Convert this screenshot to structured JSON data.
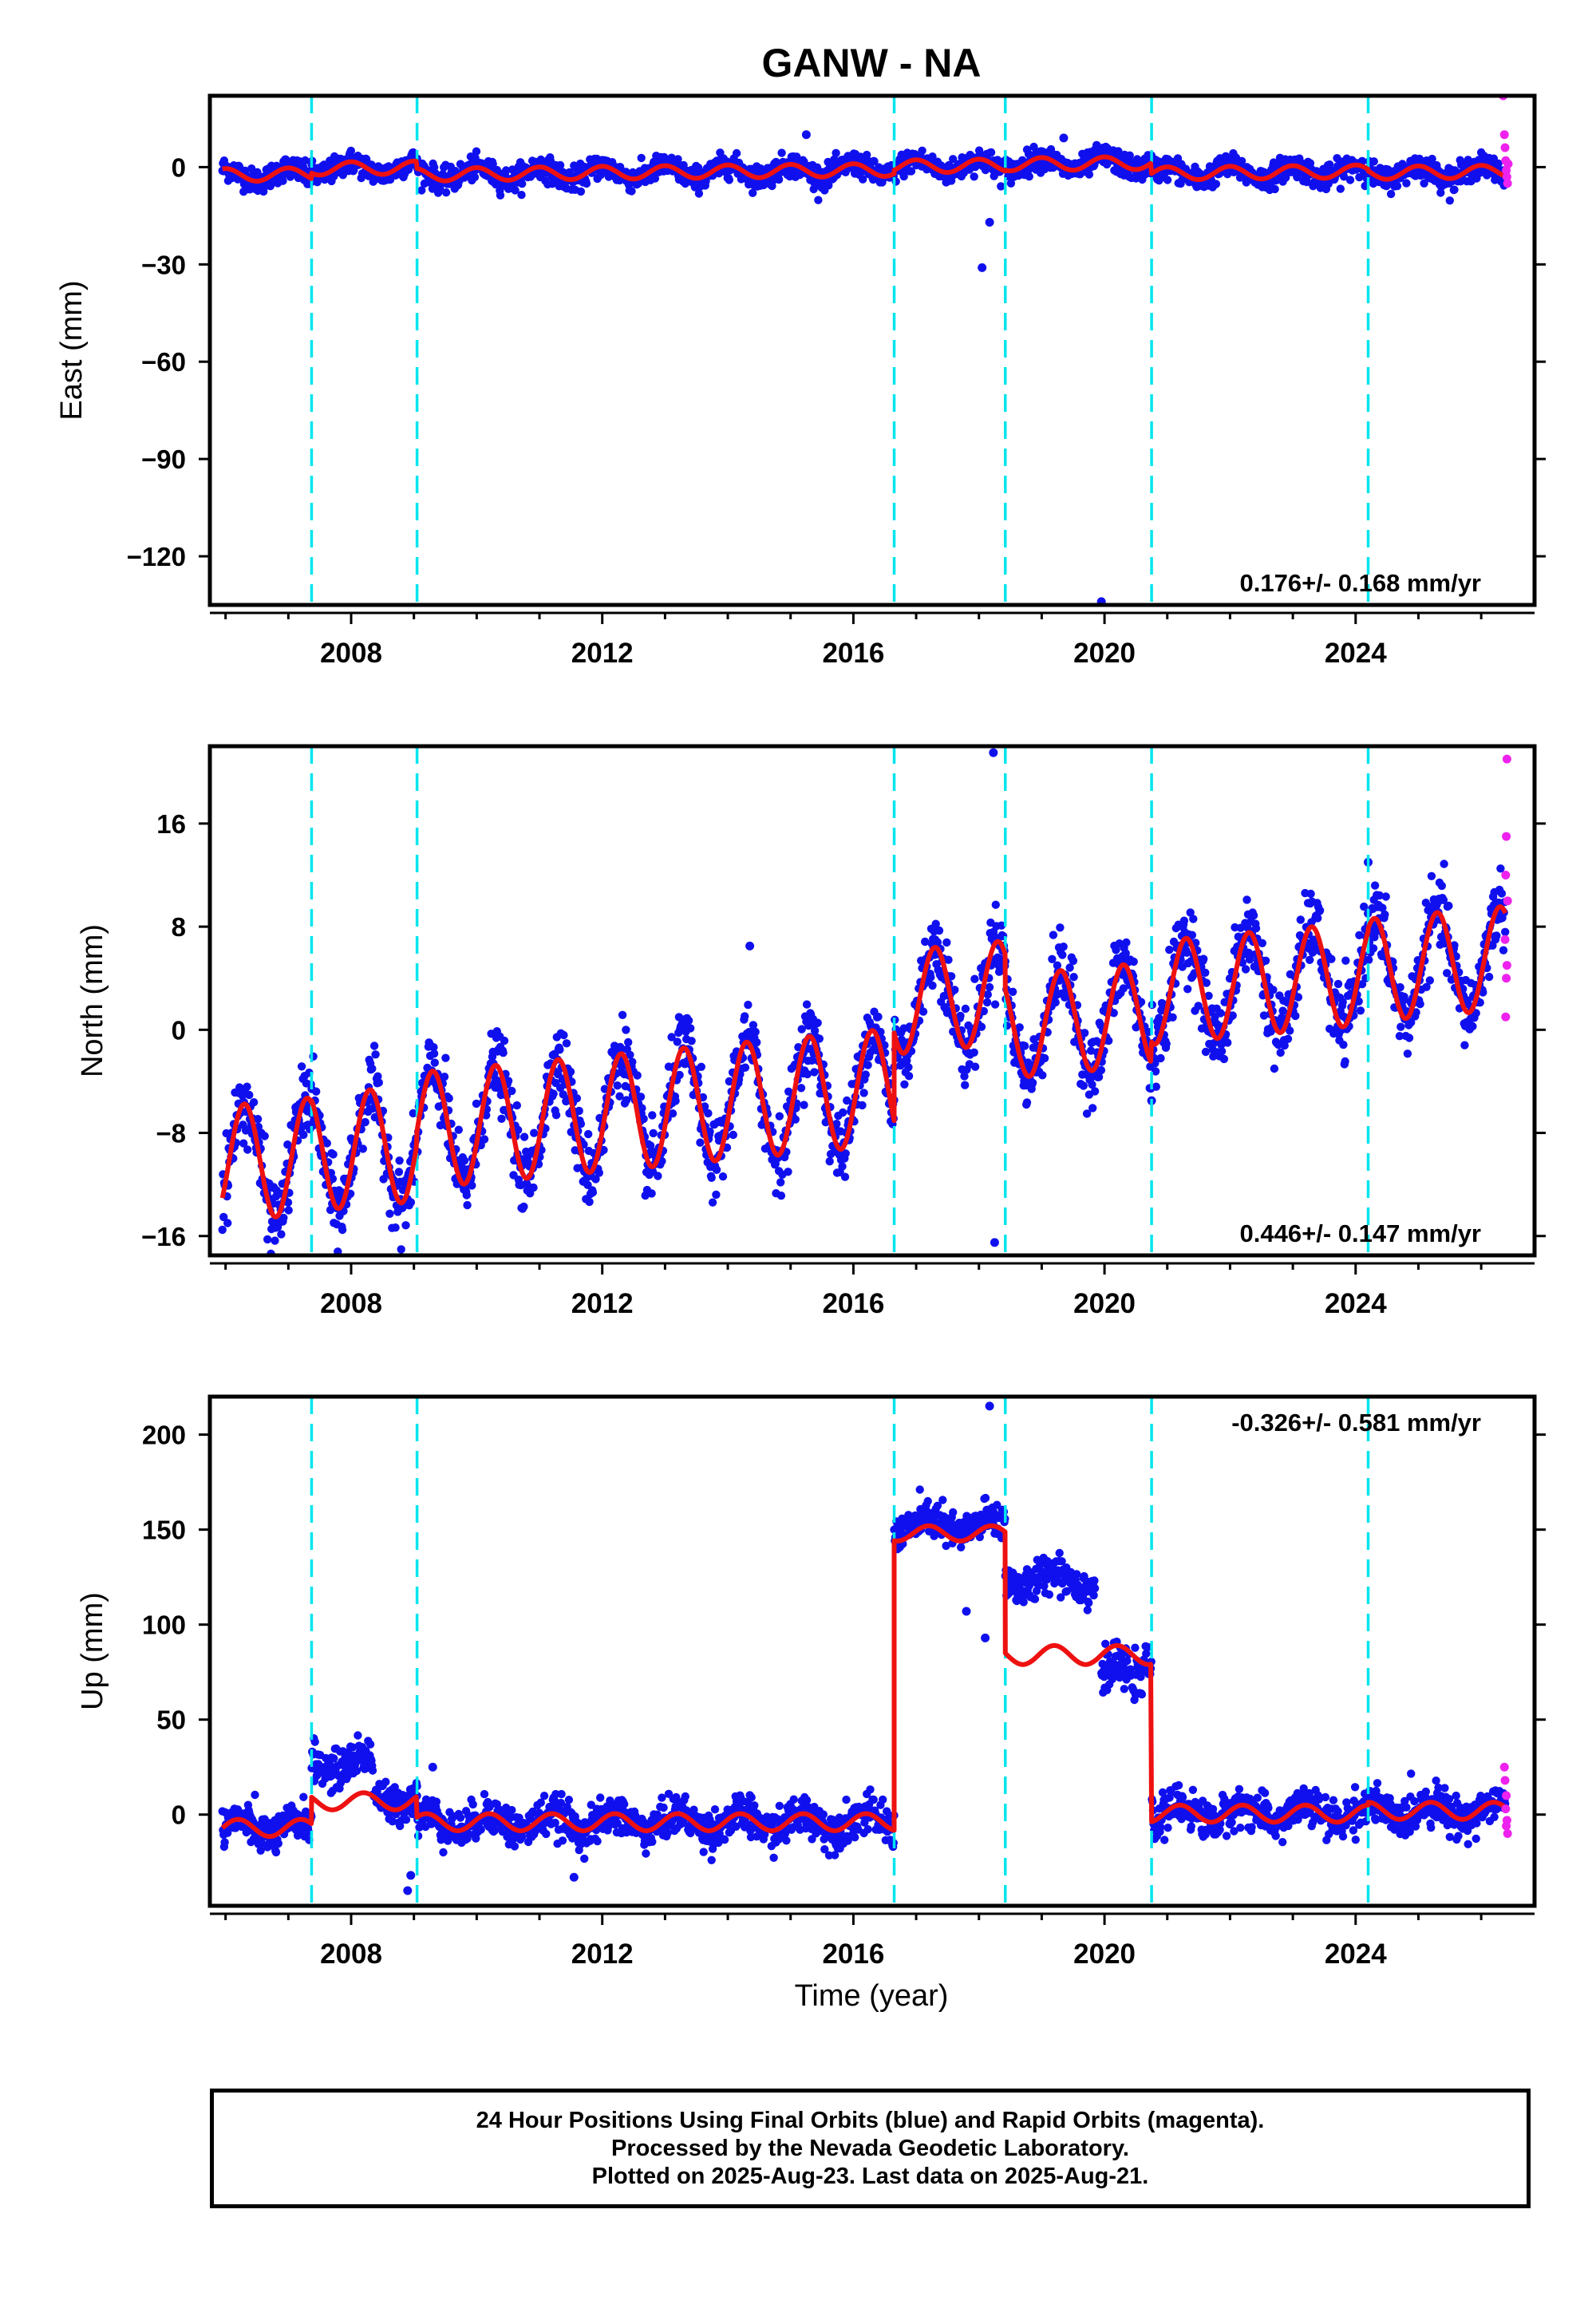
{
  "title": "GANW - NA",
  "colors": {
    "final_orbits": "#1010ee",
    "rapid_orbits": "#ee22ee",
    "model": "#ee1111",
    "steps": "#00e5ee",
    "frame": "#000000"
  },
  "xlabel": "Time (year)",
  "x_ticks": [
    "2008",
    "2012",
    "2016",
    "2020",
    "2024"
  ],
  "chart_data": [
    {
      "type": "scatter",
      "name": "east",
      "ylabel": "East (mm)",
      "ylim": [
        -135,
        22
      ],
      "xlim": [
        2005.0,
        2026.1
      ],
      "y_ticks": [
        "0",
        "−30",
        "−60",
        "−90",
        "−120"
      ],
      "rate_text": "0.176+/- 0.168 mm/yr",
      "rate_position": "bottom-right",
      "step_epochs": [
        2006.62,
        2008.3,
        2015.9,
        2017.67,
        2020.0,
        2023.45
      ],
      "model_segments": [
        {
          "t0": 2005.2,
          "t1": 2006.62,
          "a": -0.5,
          "b": 0.2,
          "c": 2.0,
          "d": 1.0
        },
        {
          "t0": 2006.62,
          "t1": 2008.3,
          "a": 1.2,
          "b": 0.2,
          "c": 2.0,
          "d": 1.0
        },
        {
          "t0": 2008.3,
          "t1": 2015.9,
          "a": -1.0,
          "b": 0.2,
          "c": 2.0,
          "d": 1.0
        },
        {
          "t0": 2015.9,
          "t1": 2017.67,
          "a": 0.0,
          "b": 0.2,
          "c": 2.0,
          "d": 1.0
        },
        {
          "t0": 2017.67,
          "t1": 2020.0,
          "a": 0.3,
          "b": 0.2,
          "c": 2.0,
          "d": 1.0
        },
        {
          "t0": 2020.0,
          "t1": 2023.45,
          "a": -3.0,
          "b": 0.2,
          "c": 2.0,
          "d": 1.0
        },
        {
          "t0": 2023.45,
          "t1": 2025.64,
          "a": -3.5,
          "b": 0.2,
          "c": 2.0,
          "d": 1.0
        }
      ],
      "noise_mm": 1.8,
      "outliers": [
        {
          "x": 2017.3,
          "y": -31
        },
        {
          "x": 2017.42,
          "y": -17
        },
        {
          "x": 2019.2,
          "y": -134
        },
        {
          "x": 2018.6,
          "y": 9
        },
        {
          "x": 2014.5,
          "y": 10
        }
      ],
      "rapid": [
        {
          "x": 2025.6,
          "y": 22
        },
        {
          "x": 2025.62,
          "y": 10
        },
        {
          "x": 2025.63,
          "y": 6
        },
        {
          "x": 2025.64,
          "y": 2
        },
        {
          "x": 2025.65,
          "y": -1
        },
        {
          "x": 2025.66,
          "y": -3
        },
        {
          "x": 2025.67,
          "y": -5
        },
        {
          "x": 2025.68,
          "y": 1
        }
      ]
    },
    {
      "type": "scatter",
      "name": "north",
      "ylabel": "North (mm)",
      "ylim": [
        -17.5,
        22
      ],
      "xlim": [
        2005.0,
        2026.1
      ],
      "y_ticks": [
        "16",
        "8",
        "0",
        "−8",
        "−16"
      ],
      "rate_text": "0.446+/- 0.147 mm/yr",
      "rate_position": "bottom-right",
      "step_epochs": [
        2006.62,
        2008.3,
        2015.9,
        2017.67,
        2020.0,
        2023.45
      ],
      "model_segments": [
        {
          "t0": 2005.2,
          "t1": 2006.62,
          "a": -6.0,
          "b": 0.45,
          "c": 4.5,
          "d": 0.3
        },
        {
          "t0": 2006.62,
          "t1": 2008.3,
          "a": -5.8,
          "b": 0.45,
          "c": 4.5,
          "d": 0.3
        },
        {
          "t0": 2008.3,
          "t1": 2015.9,
          "a": -4.8,
          "b": 0.45,
          "c": 4.5,
          "d": 0.3
        },
        {
          "t0": 2015.9,
          "t1": 2017.67,
          "a": 1.7,
          "b": 0.45,
          "c": 4.0,
          "d": 0.3
        },
        {
          "t0": 2017.67,
          "t1": 2020.0,
          "a": -1.0,
          "b": 0.45,
          "c": 4.0,
          "d": 0.3
        },
        {
          "t0": 2020.0,
          "t1": 2023.45,
          "a": 0.6,
          "b": 0.45,
          "c": 4.0,
          "d": 0.3
        },
        {
          "t0": 2023.45,
          "t1": 2025.64,
          "a": 0.8,
          "b": 0.45,
          "c": 4.0,
          "d": 0.3
        }
      ],
      "noise_mm": 1.4,
      "outliers": [
        {
          "x": 2017.48,
          "y": 21.5
        },
        {
          "x": 2017.5,
          "y": -16.5
        },
        {
          "x": 2020.0,
          "y": -5.5
        },
        {
          "x": 2005.28,
          "y": -12
        },
        {
          "x": 2013.6,
          "y": 6.5
        },
        {
          "x": 2023.45,
          "y": 13
        }
      ],
      "rapid": [
        {
          "x": 2025.66,
          "y": 21
        },
        {
          "x": 2025.65,
          "y": 15
        },
        {
          "x": 2025.64,
          "y": 12
        },
        {
          "x": 2025.67,
          "y": 10
        },
        {
          "x": 2025.63,
          "y": 7
        },
        {
          "x": 2025.66,
          "y": 5
        },
        {
          "x": 2025.65,
          "y": 4
        },
        {
          "x": 2025.64,
          "y": 1
        }
      ]
    },
    {
      "type": "scatter",
      "name": "up",
      "ylabel": "Up (mm)",
      "ylim": [
        -48,
        220
      ],
      "xlim": [
        2005.0,
        2026.1
      ],
      "y_ticks": [
        "200",
        "150",
        "100",
        "50",
        "0"
      ],
      "rate_text": "-0.326+/- 0.581 mm/yr",
      "rate_position": "top-right",
      "step_epochs": [
        2006.62,
        2008.3,
        2015.9,
        2017.67,
        2020.0,
        2023.45
      ],
      "model_segments": [
        {
          "t0": 2005.2,
          "t1": 2006.62,
          "a": -7.0,
          "b": 0.0,
          "c": 4.5,
          "d": 0.2
        },
        {
          "t0": 2006.62,
          "t1": 2008.3,
          "a": 7.0,
          "b": 0.0,
          "c": 4.5,
          "d": 0.2
        },
        {
          "t0": 2008.3,
          "t1": 2015.9,
          "a": -4.0,
          "b": 0.0,
          "c": 4.5,
          "d": 0.2
        },
        {
          "t0": 2015.9,
          "t1": 2017.67,
          "a": 148.0,
          "b": 0.0,
          "c": 4.0,
          "d": 0.2
        },
        {
          "t0": 2017.67,
          "t1": 2020.0,
          "a": 84.0,
          "b": 0.0,
          "c": 5.0,
          "d": 0.2
        },
        {
          "t0": 2020.0,
          "t1": 2023.45,
          "a": 0.5,
          "b": 0.0,
          "c": 4.5,
          "d": 0.2
        },
        {
          "t0": 2023.45,
          "t1": 2025.64,
          "a": 2.0,
          "b": 0.0,
          "c": 4.5,
          "d": 0.2
        }
      ],
      "data_segments": [
        {
          "t0": 2005.2,
          "t1": 2006.62,
          "offset": 0
        },
        {
          "t0": 2006.62,
          "t1": 2007.6,
          "offset": 20
        },
        {
          "t0": 2007.6,
          "t1": 2008.3,
          "offset": 2
        },
        {
          "t0": 2008.3,
          "t1": 2015.9,
          "offset": 0
        },
        {
          "t0": 2015.9,
          "t1": 2017.67,
          "offset": 4
        },
        {
          "t0": 2017.67,
          "t1": 2019.1,
          "offset": 40
        },
        {
          "t0": 2019.2,
          "t1": 2019.85,
          "offset": -11
        },
        {
          "t0": 2019.85,
          "t1": 2025.64,
          "offset": 0
        }
      ],
      "noise_mm": 5,
      "outliers": [
        {
          "x": 2017.42,
          "y": 215
        },
        {
          "x": 2017.35,
          "y": 93
        },
        {
          "x": 2017.05,
          "y": 107
        },
        {
          "x": 2008.15,
          "y": -40
        },
        {
          "x": 2008.2,
          "y": -32
        },
        {
          "x": 2010.8,
          "y": -33
        },
        {
          "x": 2008.55,
          "y": 25
        }
      ],
      "rapid": [
        {
          "x": 2025.62,
          "y": 25
        },
        {
          "x": 2025.63,
          "y": 18
        },
        {
          "x": 2025.65,
          "y": 10
        },
        {
          "x": 2025.64,
          "y": 3
        },
        {
          "x": 2025.66,
          "y": -3
        },
        {
          "x": 2025.67,
          "y": -10
        },
        {
          "x": 2025.65,
          "y": -6
        }
      ]
    }
  ],
  "caption": {
    "line1": "24 Hour Positions Using Final Orbits (blue) and Rapid Orbits (magenta).",
    "line2": "Processed by the Nevada Geodetic Laboratory.",
    "line3": "Plotted on 2025-Aug-23. Last data on 2025-Aug-21."
  }
}
